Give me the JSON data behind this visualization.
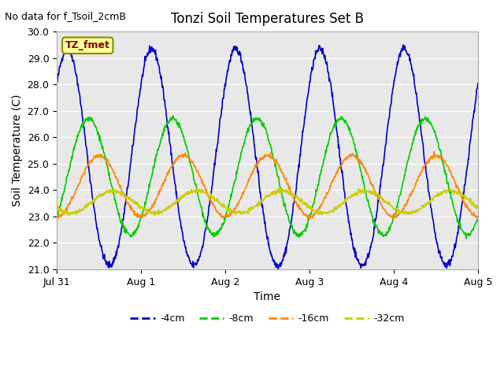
{
  "title": "Tonzi Soil Temperatures Set B",
  "no_data_label": "No data for f_Tsoil_2cmB",
  "tz_label": "TZ_fmet",
  "xlabel": "Time",
  "ylabel": "Soil Temperature (C)",
  "ylim": [
    21.0,
    30.0
  ],
  "yticks": [
    21.0,
    22.0,
    23.0,
    24.0,
    25.0,
    26.0,
    27.0,
    28.0,
    29.0,
    30.0
  ],
  "xtick_labels": [
    "Jul 31",
    "Aug 1",
    "Aug 2",
    "Aug 3",
    "Aug 4",
    "Aug 5"
  ],
  "bg_color": "#e8e8e8",
  "plot_bg_color": "#e8e8e8",
  "line_colors": {
    "-4cm": "#0000cc",
    "-8cm": "#00cc00",
    "-16cm": "#ff8800",
    "-32cm": "#cccc00"
  },
  "legend_entries": [
    "-4cm",
    "-8cm",
    "-16cm",
    "-32cm"
  ]
}
